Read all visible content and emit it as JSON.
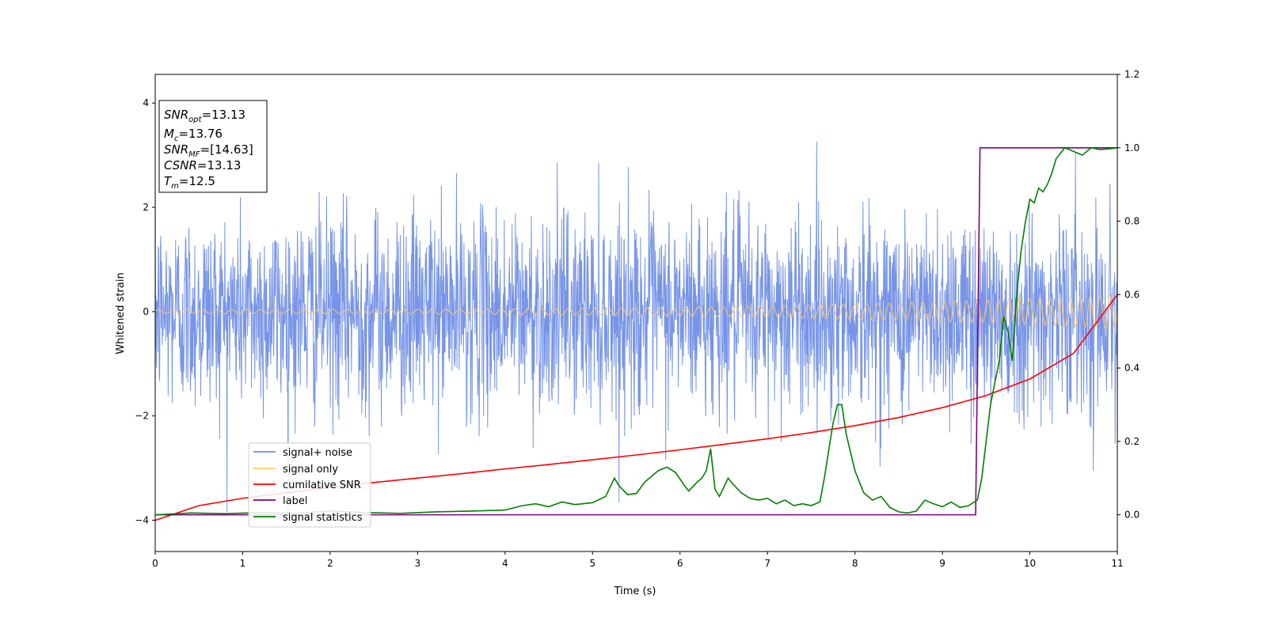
{
  "chart_data": {
    "type": "line",
    "xlabel": "Time (s)",
    "ylabel": "Whitened strain",
    "xlim": [
      0,
      11
    ],
    "ylim": [
      -4.6,
      4.55
    ],
    "y2lim": [
      -0.1,
      1.2
    ],
    "xticks": [
      "0",
      "1",
      "2",
      "3",
      "4",
      "5",
      "6",
      "7",
      "8",
      "9",
      "10",
      "11"
    ],
    "yticks": [
      "−4",
      "−2",
      "0",
      "2",
      "4"
    ],
    "y2ticks": [
      "0.0",
      "0.2",
      "0.4",
      "0.6",
      "0.8",
      "1.0",
      "1.2"
    ],
    "grid": false,
    "legend_position": "lower-left",
    "colors": {
      "signal_noise": "#6b8be6",
      "signal_only": "#ffc864",
      "cumulative_snr": "#ff0000",
      "label": "#800080",
      "signal_statistics": "#008000"
    },
    "annotation": {
      "snr_opt": {
        "name": "SNR",
        "sub": "opt",
        "value": "=13.13"
      },
      "mc": {
        "name": "M",
        "sub": "c",
        "value": "=13.76"
      },
      "snr_mf": {
        "name": "SNR",
        "sub": "MF",
        "value": "=[14.63]"
      },
      "csnr": {
        "name": "CSNR",
        "sub": "",
        "value": "=13.13"
      },
      "tm": {
        "name": "T",
        "sub": "m",
        "value": "=12.5"
      }
    },
    "series": [
      {
        "name": "signal+ noise",
        "axis": "left",
        "std": 0.95,
        "duration": 11
      },
      {
        "name": "signal only",
        "axis": "left",
        "amplitude_start": 0.04,
        "amplitude_end": 0.32,
        "freq_start": 6,
        "freq_end": 9
      },
      {
        "name": "cumilative SNR",
        "axis": "right",
        "x": [
          0,
          0.5,
          1,
          1.5,
          2,
          2.5,
          3,
          3.5,
          4,
          4.5,
          5,
          5.5,
          6,
          6.5,
          7,
          7.5,
          8,
          8.5,
          9,
          9.5,
          10,
          10.5,
          11
        ],
        "y": [
          -0.015,
          0.025,
          0.045,
          0.06,
          0.075,
          0.088,
          0.1,
          0.112,
          0.125,
          0.137,
          0.15,
          0.163,
          0.177,
          0.192,
          0.207,
          0.224,
          0.243,
          0.265,
          0.292,
          0.325,
          0.37,
          0.44,
          0.6
        ]
      },
      {
        "name": "label",
        "axis": "right",
        "x": [
          0,
          9.38,
          9.43,
          11
        ],
        "y": [
          0,
          0,
          1,
          1
        ]
      },
      {
        "name": "signal statistics",
        "axis": "right",
        "x": [
          0,
          0.4,
          0.8,
          1.2,
          1.6,
          2.0,
          2.4,
          2.8,
          3.2,
          3.6,
          4.0,
          4.2,
          4.35,
          4.5,
          4.65,
          4.8,
          5.0,
          5.15,
          5.25,
          5.3,
          5.4,
          5.5,
          5.6,
          5.75,
          5.85,
          5.95,
          6.05,
          6.1,
          6.2,
          6.25,
          6.3,
          6.35,
          6.4,
          6.45,
          6.55,
          6.6,
          6.7,
          6.8,
          6.9,
          7.0,
          7.1,
          7.2,
          7.3,
          7.4,
          7.5,
          7.6,
          7.65,
          7.75,
          7.8,
          7.85,
          7.9,
          8.0,
          8.1,
          8.2,
          8.3,
          8.4,
          8.5,
          8.6,
          8.7,
          8.8,
          8.9,
          9.0,
          9.1,
          9.2,
          9.3,
          9.4,
          9.45,
          9.5,
          9.55,
          9.6,
          9.65,
          9.7,
          9.75,
          9.8,
          9.85,
          9.9,
          9.95,
          10.0,
          10.05,
          10.1,
          10.15,
          10.2,
          10.25,
          10.3,
          10.4,
          10.5,
          10.6,
          10.7,
          10.8,
          10.9,
          11.0
        ],
        "y": [
          0,
          0.005,
          0.003,
          0.006,
          0.004,
          0.01,
          0.006,
          0.004,
          0.008,
          0.01,
          0.013,
          0.025,
          0.03,
          0.022,
          0.035,
          0.028,
          0.033,
          0.05,
          0.1,
          0.08,
          0.055,
          0.058,
          0.09,
          0.12,
          0.13,
          0.115,
          0.08,
          0.065,
          0.09,
          0.1,
          0.12,
          0.18,
          0.07,
          0.05,
          0.1,
          0.085,
          0.06,
          0.045,
          0.04,
          0.045,
          0.03,
          0.04,
          0.025,
          0.03,
          0.025,
          0.035,
          0.1,
          0.25,
          0.3,
          0.3,
          0.22,
          0.12,
          0.06,
          0.04,
          0.05,
          0.02,
          0.008,
          0.005,
          0.01,
          0.04,
          0.03,
          0.022,
          0.035,
          0.02,
          0.025,
          0.04,
          0.1,
          0.2,
          0.3,
          0.36,
          0.42,
          0.54,
          0.5,
          0.42,
          0.6,
          0.72,
          0.8,
          0.86,
          0.85,
          0.89,
          0.88,
          0.9,
          0.93,
          0.97,
          1.0,
          0.99,
          0.98,
          1.0,
          0.995,
          0.997,
          1.0
        ]
      }
    ]
  }
}
